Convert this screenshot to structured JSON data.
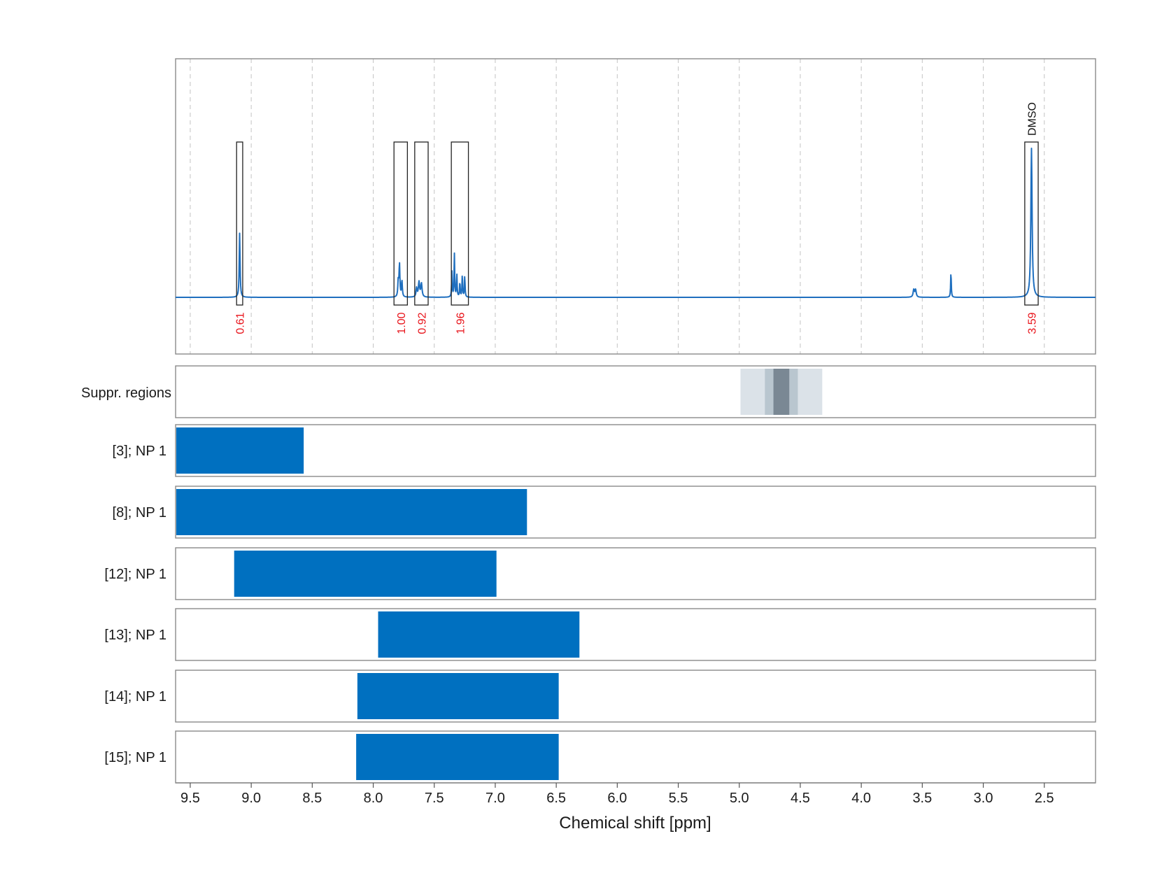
{
  "chart_data": {
    "type": "nmr_spectrum_with_ranges",
    "xlabel": "Chemical shift [ppm]",
    "xlim": [
      9.62,
      2.08
    ],
    "xticks": [
      9.5,
      9.0,
      8.5,
      8.0,
      7.5,
      7.0,
      6.5,
      6.0,
      5.5,
      5.0,
      4.5,
      4.0,
      3.5,
      3.0,
      2.5
    ],
    "xtick_labels": [
      "9.5",
      "9.0",
      "8.5",
      "8.0",
      "7.5",
      "7.0",
      "6.5",
      "6.0",
      "5.5",
      "5.0",
      "4.5",
      "4.0",
      "3.5",
      "3.0",
      "2.5"
    ],
    "grid": true,
    "spectrum": {
      "color": "#1f6fbf",
      "baseline": 0,
      "ylim": [
        -0.38,
        1.6
      ],
      "peaks": [
        {
          "ppm": 9.095,
          "height": 0.43,
          "width": 0.004
        },
        {
          "ppm": 7.785,
          "height": 0.22,
          "width": 0.004
        },
        {
          "ppm": 7.765,
          "height": 0.11,
          "width": 0.004
        },
        {
          "ppm": 7.795,
          "height": 0.11,
          "width": 0.004
        },
        {
          "ppm": 7.625,
          "height": 0.1,
          "width": 0.006
        },
        {
          "ppm": 7.605,
          "height": 0.09,
          "width": 0.006
        },
        {
          "ppm": 7.645,
          "height": 0.06,
          "width": 0.005
        },
        {
          "ppm": 7.335,
          "height": 0.29,
          "width": 0.003
        },
        {
          "ppm": 7.355,
          "height": 0.17,
          "width": 0.003
        },
        {
          "ppm": 7.315,
          "height": 0.15,
          "width": 0.003
        },
        {
          "ppm": 7.27,
          "height": 0.15,
          "width": 0.003
        },
        {
          "ppm": 7.25,
          "height": 0.14,
          "width": 0.003
        },
        {
          "ppm": 7.29,
          "height": 0.1,
          "width": 0.003
        },
        {
          "ppm": 3.57,
          "height": 0.05,
          "width": 0.006
        },
        {
          "ppm": 3.555,
          "height": 0.05,
          "width": 0.006
        },
        {
          "ppm": 3.265,
          "height": 0.17,
          "width": 0.003
        },
        {
          "ppm": 2.605,
          "height": 1.0,
          "width": 0.006
        }
      ],
      "regions": [
        {
          "from": 9.12,
          "to": 9.07,
          "integral": "0.61",
          "label": ""
        },
        {
          "from": 7.83,
          "to": 7.72,
          "integral": "1.00",
          "label": ""
        },
        {
          "from": 7.66,
          "to": 7.55,
          "integral": "0.92",
          "label": ""
        },
        {
          "from": 7.36,
          "to": 7.22,
          "integral": "1.96",
          "label": ""
        },
        {
          "from": 2.66,
          "to": 2.55,
          "integral": "3.59",
          "label": "DMSO"
        }
      ]
    },
    "suppression": {
      "label": "Suppr. regions",
      "bands": [
        {
          "from": 4.99,
          "to": 4.32,
          "color": "#dbe2e8"
        },
        {
          "from": 4.79,
          "to": 4.52,
          "color": "#b9c6cf"
        },
        {
          "from": 4.72,
          "to": 4.59,
          "color": "#7a8894"
        }
      ]
    },
    "ranges": [
      {
        "label": "[3]; NP 1",
        "from": 9.62,
        "to": 8.57,
        "color": "#0070c0"
      },
      {
        "label": "[8]; NP 1",
        "from": 9.62,
        "to": 6.74,
        "color": "#0070c0"
      },
      {
        "label": "[12]; NP 1",
        "from": 9.14,
        "to": 6.99,
        "color": "#0070c0"
      },
      {
        "label": "[13]; NP 1",
        "from": 7.96,
        "to": 6.31,
        "color": "#0070c0"
      },
      {
        "label": "[14]; NP 1",
        "from": 8.13,
        "to": 6.48,
        "color": "#0070c0"
      },
      {
        "label": "[15]; NP 1",
        "from": 8.14,
        "to": 6.48,
        "color": "#0070c0"
      }
    ]
  }
}
